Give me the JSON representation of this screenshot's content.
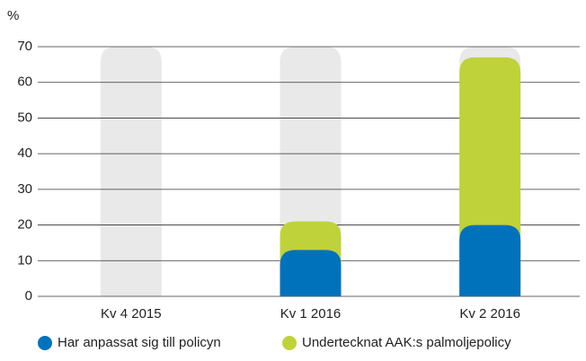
{
  "chart_data": {
    "type": "stacked_bar",
    "y_label": "%",
    "categories": [
      "Kv 4 2015",
      "Kv 1 2016",
      "Kv 2 2016"
    ],
    "series": [
      {
        "name": "Har anpassat sig till policyn",
        "color": "#0072bc",
        "values": [
          0,
          13,
          20
        ]
      },
      {
        "name": "Undertecknat AAK:s palmoljepolicy",
        "color": "#c0d23a",
        "values": [
          0,
          8,
          47
        ]
      }
    ],
    "ylim": [
      0,
      70
    ],
    "yticks": [
      0,
      10,
      20,
      30,
      40,
      50,
      60,
      70
    ],
    "grid": true,
    "background_color": "#e9e9e9",
    "legend": "bottom"
  }
}
